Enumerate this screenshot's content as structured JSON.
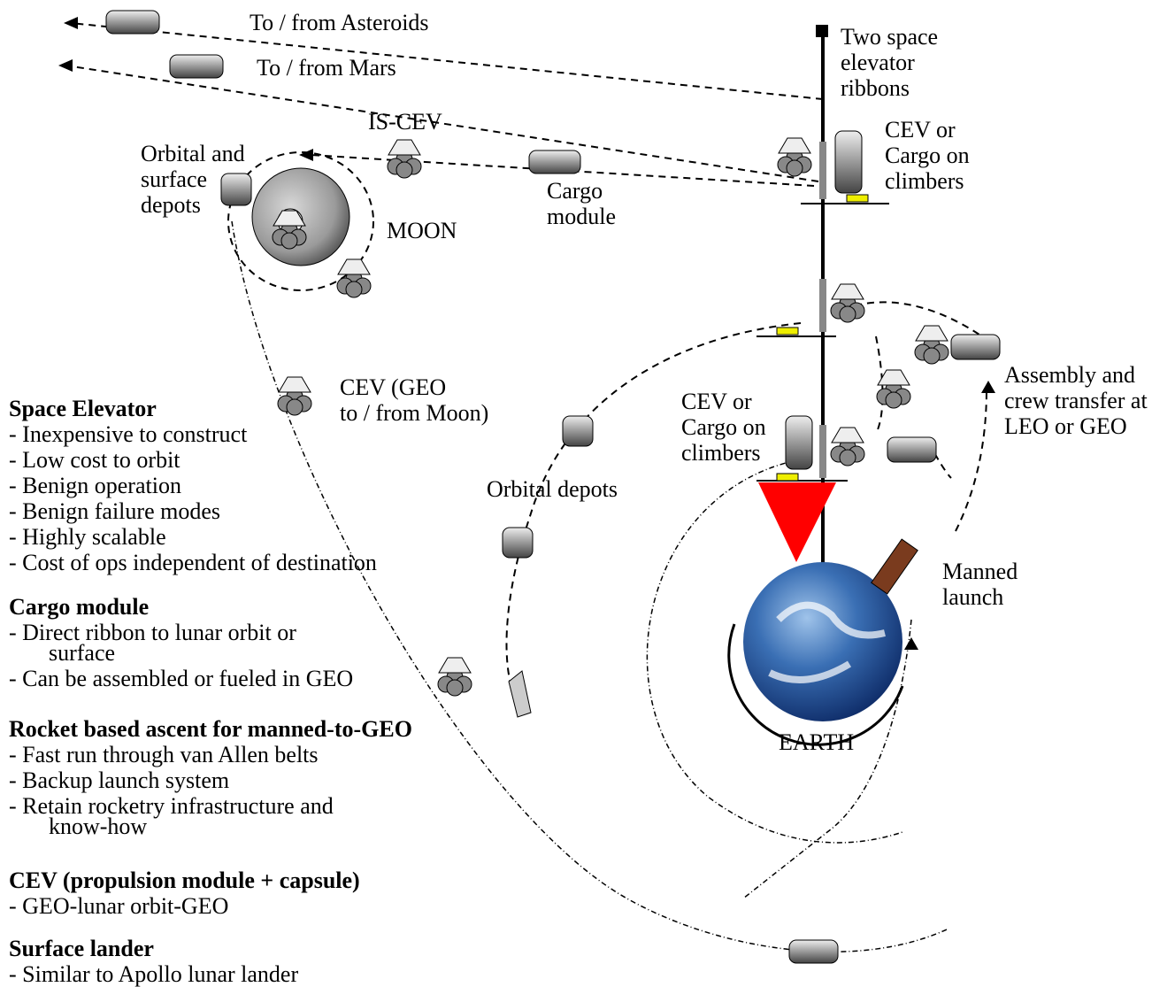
{
  "labels": [
    {
      "lines": [
        "To / from Asteroids"
      ]
    },
    {
      "lines": [
        "To / from Mars"
      ]
    },
    {
      "lines": [
        "Two space",
        "elevator",
        "ribbons"
      ]
    },
    {
      "lines": [
        "IS-CEV"
      ]
    },
    {
      "lines": [
        "Orbital and",
        "surface",
        "depots"
      ]
    },
    {
      "lines": [
        "CEV or",
        "Cargo on",
        "climbers"
      ]
    },
    {
      "lines": [
        "Cargo",
        "module"
      ]
    },
    {
      "lines": [
        "MOON"
      ]
    },
    {
      "lines": [
        "CEV (GEO",
        "to / from Moon)"
      ]
    },
    {
      "lines": [
        "Assembly and",
        "crew transfer at",
        "LEO or GEO"
      ]
    },
    {
      "lines": [
        "CEV or",
        "Cargo on",
        "climbers"
      ]
    },
    {
      "lines": [
        "Orbital depots"
      ]
    },
    {
      "lines": [
        "Manned",
        "launch"
      ]
    },
    {
      "lines": [
        "EARTH"
      ]
    }
  ],
  "notes": [
    {
      "heading": "Space Elevator",
      "items": [
        [
          "- Inexpensive to construct"
        ],
        [
          "- Low cost to orbit"
        ],
        [
          "- Benign operation"
        ],
        [
          "- Benign failure modes"
        ],
        [
          "- Highly scalable"
        ],
        [
          "- Cost of ops independent of destination"
        ]
      ]
    },
    {
      "heading": "Cargo module",
      "items": [
        [
          "- Direct ribbon to lunar orbit or",
          "surface"
        ],
        [
          "- Can be assembled or fueled in GEO"
        ]
      ]
    },
    {
      "heading": "Rocket based ascent for manned-to-GEO",
      "items": [
        [
          "- Fast run through van Allen belts"
        ],
        [
          "- Backup launch system"
        ],
        [
          "- Retain rocketry infrastructure and",
          "know-how"
        ]
      ]
    },
    {
      "heading": "CEV (propulsion module + capsule)",
      "items": [
        [
          "- GEO-lunar orbit-GEO"
        ]
      ]
    },
    {
      "heading": "Surface lander",
      "items": [
        [
          "- Similar to Apollo lunar lander"
        ]
      ]
    }
  ]
}
